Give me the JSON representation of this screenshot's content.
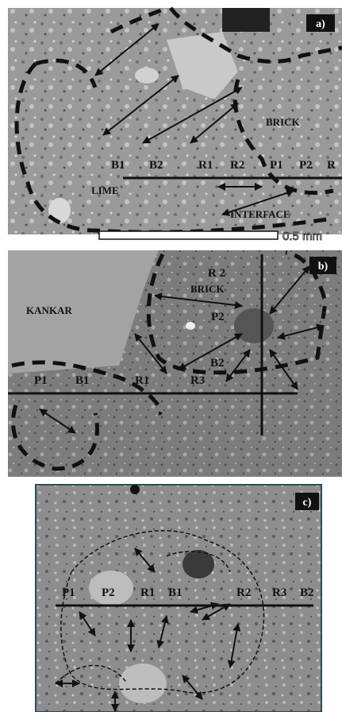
{
  "panels": [
    {
      "label": "a)",
      "annotations": [
        "BRICK",
        "B1",
        "B2",
        "R1",
        "R2",
        "P1",
        "P2",
        "R",
        "LIME",
        "INTERFACE"
      ],
      "scale_bar": "0.5 mm"
    },
    {
      "label": "b)",
      "annotations": [
        "R 2",
        "BRICK",
        "KANKAR",
        "P2",
        "B2",
        "P1",
        "B1",
        "R1",
        "R3"
      ]
    },
    {
      "label": "c)",
      "annotations": [
        "P1",
        "P2",
        "R1",
        "B1",
        "R2",
        "R3",
        "B2"
      ]
    }
  ]
}
